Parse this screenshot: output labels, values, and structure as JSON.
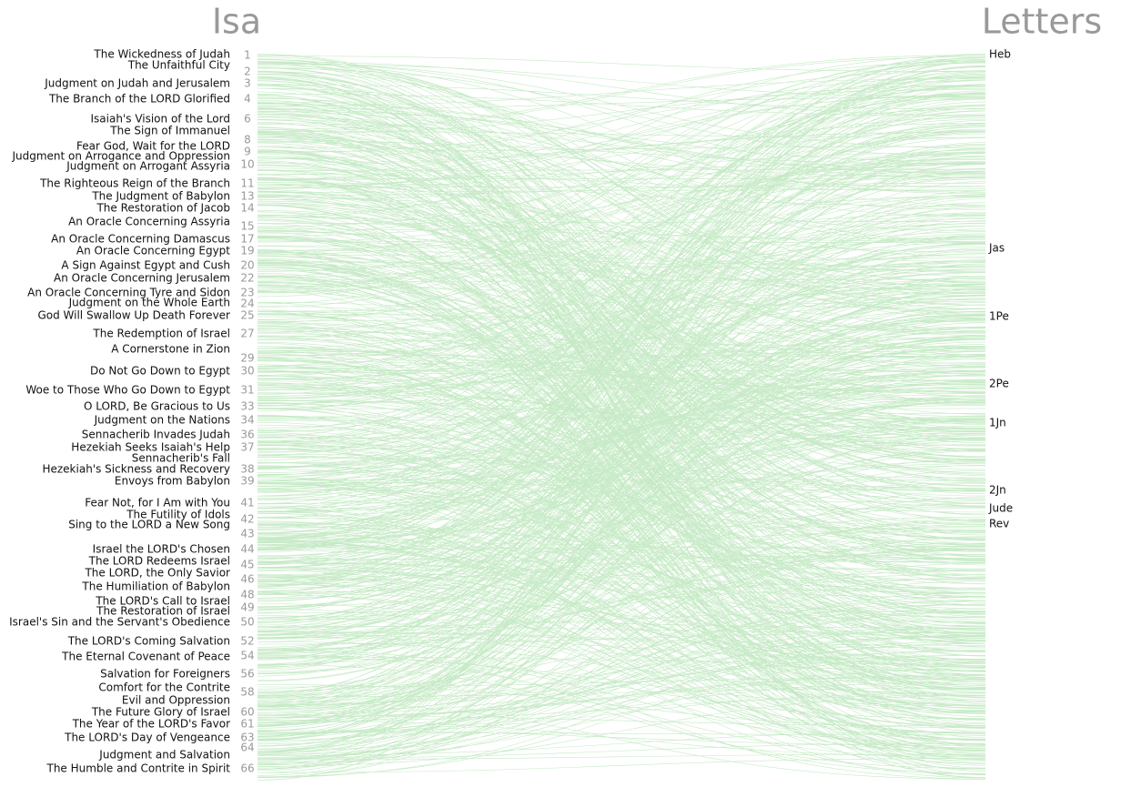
{
  "left_title": "Isa",
  "right_title": "Letters",
  "headings": [
    "The Wickedness of Judah",
    "The Unfaithful City",
    "Judgment on Judah and Jerusalem",
    "The Branch of the LORD Glorified",
    "Isaiah's Vision of the Lord",
    "The Sign of Immanuel",
    "Fear God, Wait for the LORD",
    "Judgment on Arrogance and Oppression",
    "Judgment on Arrogant Assyria",
    "The Righteous Reign of the Branch",
    "The Judgment of Babylon",
    "The Restoration of Jacob",
    "An Oracle Concerning Assyria",
    "An Oracle Concerning Damascus",
    "An Oracle Concerning Egypt",
    "A Sign Against Egypt and Cush",
    "An Oracle Concerning Jerusalem",
    "An Oracle Concerning Tyre and Sidon",
    "Judgment on the Whole Earth",
    "God Will Swallow Up Death Forever",
    "The Redemption of Israel",
    "A Cornerstone in Zion",
    "Do Not Go Down to Egypt",
    "Woe to Those Who Go Down to Egypt",
    "O LORD, Be Gracious to Us",
    "Judgment on the Nations",
    "Sennacherib Invades Judah",
    "Hezekiah Seeks Isaiah's Help",
    "Sennacherib's Fall",
    "Hezekiah's Sickness and Recovery",
    "Envoys from Babylon",
    "Fear Not, for I Am with You",
    "The Futility of Idols",
    "Sing to the LORD a New Song",
    "Israel the LORD's Chosen",
    "The LORD Redeems Israel",
    "The LORD, the Only Savior",
    "The Humiliation of Babylon",
    "The LORD's Call to Israel",
    "The Restoration of Israel",
    "Israel's Sin and the Servant's Obedience",
    "The LORD's Coming Salvation",
    "The Eternal Covenant of Peace",
    "Salvation for Foreigners",
    "Comfort for the Contrite",
    "Evil and Oppression",
    "The Future Glory of Israel",
    "The Year of the LORD's Favor",
    "The LORD's Day of Vengeance",
    "Judgment and Salvation",
    "The Humble and Contrite in Spirit"
  ],
  "chapters": [
    1,
    2,
    3,
    4,
    6,
    8,
    9,
    10,
    11,
    13,
    14,
    15,
    17,
    19,
    20,
    22,
    23,
    24,
    25,
    27,
    29,
    30,
    31,
    33,
    34,
    36,
    37,
    38,
    39,
    41,
    42,
    43,
    44,
    45,
    46,
    48,
    49,
    50,
    52,
    54,
    56,
    58,
    60,
    61,
    63,
    64,
    66
  ],
  "books": [
    "Heb",
    "Jas",
    "1Pe",
    "2Pe",
    "1Jn",
    "2Jn",
    "Jude",
    "Rev"
  ]
}
